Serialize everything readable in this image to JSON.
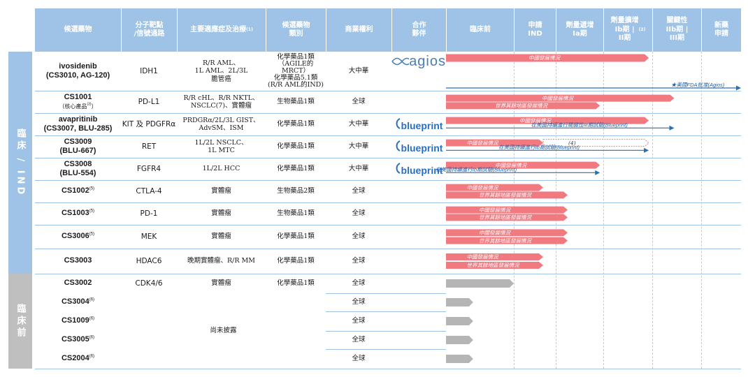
{
  "columns": [
    {
      "key": "candidate",
      "label": "候選藥物"
    },
    {
      "key": "target",
      "label": "分子靶點\n/信號通路"
    },
    {
      "key": "indication",
      "label": "主要適應症及治療",
      "sup": "(1)"
    },
    {
      "key": "category",
      "label": "候選藥物\n類別"
    },
    {
      "key": "rights",
      "label": "商業權利"
    },
    {
      "key": "partner",
      "label": "合作\n夥伴"
    },
    {
      "key": "preclinical",
      "label": "臨床前"
    },
    {
      "key": "ind",
      "label": "申請\nIND"
    },
    {
      "key": "dose_esc",
      "label": "劑量遞增\nIa期"
    },
    {
      "key": "dose_exp",
      "label": "劑量擴增\nIb期 |\nII期",
      "sup": "(2)"
    },
    {
      "key": "pivotal",
      "label": "關鍵性\nIIb期 |\nIII期"
    },
    {
      "key": "nda",
      "label": "新藥\n申請"
    }
  ],
  "groups": [
    {
      "label": "臨床 / IND",
      "color": "#9ec3e6"
    },
    {
      "label": "臨床前",
      "color": "#bfbfbf"
    }
  ],
  "rows": [
    {
      "name": "ivosidenib",
      "sub": "(CS3010, AG-120)",
      "sub_bold": true,
      "target": "IDH1",
      "indication": "R/R AML、\n1L AML、2L/3L\n膽管癌",
      "category": "化學藥品1類\n（AGILE的MRCT）\n化學藥品5.1類\n(R/R AML的IND)",
      "rights": "大中華",
      "partner": "agios"
    },
    {
      "name": "CS1001",
      "sub": "（核心產品",
      "sub_sup": "(3)",
      "sub_end": "）",
      "target": "PD-L1",
      "indication": "R/R cHL、R/R NKTL、\nNSCLC(7)、實體瘤",
      "category": "生物藥品1類",
      "rights": "全球",
      "partner": ""
    },
    {
      "name": "avapritinib",
      "sub": "(CS3007, BLU-285)",
      "sub_bold": true,
      "target": "KIT 及 PDGFRα",
      "indication": "PRDGRα/2L/3L GIST、\nAdvSM、ISM",
      "category": "化學藥品1類",
      "rights": "大中華",
      "partner": "blueprint"
    },
    {
      "name": "CS3009",
      "sub": "(BLU-667)",
      "sub_bold": true,
      "target": "RET",
      "indication": "1L/2L NSCLC、\n1L MTC",
      "category": "化學藥品1類",
      "rights": "大中華",
      "partner": "blueprint"
    },
    {
      "name": "CS3008",
      "sub": "(BLU-554)",
      "sub_bold": true,
      "target": "FGFR4",
      "indication": "1L/2L HCC",
      "category": "化學藥品1類",
      "rights": "大中華",
      "partner": "blueprint"
    },
    {
      "name": "CS1002",
      "name_sup": "(5)",
      "target": "CTLA-4",
      "indication": "實體瘤",
      "category": "生物藥品2類",
      "rights": "全球",
      "partner": ""
    },
    {
      "name": "CS1003",
      "name_sup": "(5)",
      "target": "PD-1",
      "indication": "實體瘤",
      "category": "生物藥品1類",
      "rights": "全球",
      "partner": ""
    },
    {
      "name": "CS3006",
      "name_sup": "(5)",
      "target": "MEK",
      "indication": "實體瘤",
      "category": "化學藥品1類",
      "rights": "全球",
      "partner": ""
    },
    {
      "name": "CS3003",
      "target": "HDAC6",
      "indication": "晚期實體瘤、R/R MM",
      "category": "化學藥品1類",
      "rights": "全球",
      "partner": ""
    },
    {
      "name": "CS3002",
      "target": "CDK4/6",
      "indication": "實體瘤",
      "category": "化學藥品1類",
      "rights": "全球",
      "partner": ""
    },
    {
      "name": "CS3004",
      "name_sup": "(6)",
      "rights": "全球"
    },
    {
      "name": "CS1009",
      "name_sup": "(6)",
      "rights": "全球"
    },
    {
      "name": "CS3005",
      "name_sup": "(6)",
      "rights": "全球"
    },
    {
      "name": "CS2004",
      "name_sup": "(6)",
      "rights": "全球"
    }
  ],
  "undisclosed_label": "尚未披露",
  "chart_data": {
    "type": "gantt",
    "stages": [
      "臨床前",
      "申請IND",
      "劑量遞增Ia期",
      "劑量擴增Ib期|II期",
      "關鍵性IIb期|III期",
      "新藥申請"
    ],
    "bars": [
      {
        "row": 0,
        "label": "中國發展情況",
        "start": 0,
        "end": 3.93,
        "style": "solid"
      },
      {
        "row": 0,
        "label": "★美國FDA批准(Agios)",
        "start": 0,
        "end": 6,
        "style": "arrow"
      },
      {
        "row": 1,
        "label": "中國發展情況",
        "start": 0,
        "end": 4.45,
        "style": "solid"
      },
      {
        "row": 1,
        "label": "世界其餘地區發展情況",
        "start": 0,
        "end": 2.93,
        "style": "solid"
      },
      {
        "row": 2,
        "label": "中國發展情況",
        "start": 0,
        "end": 3.93,
        "style": "solid"
      },
      {
        "row": 2,
        "label": "在美國持續進行關鍵性III期試驗(Blueprint)",
        "start": 0,
        "end": 4.45,
        "style": "arrow"
      },
      {
        "row": 3,
        "label": "中國發展情況",
        "start": 0,
        "end": 1.7,
        "style": "solid"
      },
      {
        "row": 3,
        "label": "(4)",
        "start": 1.7,
        "end": 3.93,
        "style": "outline"
      },
      {
        "row": 3,
        "label": "在美國持續進行Ib期試驗(Blueprint)",
        "start": 0,
        "end": 3.93,
        "style": "arrow"
      },
      {
        "row": 4,
        "label": "中國發展情況",
        "start": 0,
        "end": 2.93,
        "style": "solid"
      },
      {
        "row": 4,
        "label": "在美國持續進行Ib期試驗(Blueprint)",
        "start": 0,
        "end": 2.93,
        "style": "arrow"
      },
      {
        "row": 5,
        "label": "中國發展情況",
        "start": 0,
        "end": 1.7,
        "style": "solid"
      },
      {
        "row": 5,
        "label": "世界其餘地區發展情況",
        "start": 0,
        "end": 2.25,
        "style": "solid"
      },
      {
        "row": 6,
        "label": "中國發展情況",
        "start": 0,
        "end": 2.25,
        "style": "solid"
      },
      {
        "row": 6,
        "label": "世界其餘地區發展情況",
        "start": 0,
        "end": 2.25,
        "style": "solid"
      },
      {
        "row": 7,
        "label": "中國發展情況",
        "start": 0,
        "end": 2.25,
        "style": "solid"
      },
      {
        "row": 7,
        "label": "世界其餘地區發展情況",
        "start": 0,
        "end": 2.25,
        "style": "solid"
      },
      {
        "row": 8,
        "label": "中國發展情況",
        "start": 0,
        "end": 1.7,
        "style": "solid"
      },
      {
        "row": 8,
        "label": "世界其餘地區發展情況",
        "start": 0,
        "end": 1.7,
        "style": "solid"
      },
      {
        "row": 9,
        "label": "",
        "start": 0,
        "end": 1,
        "style": "gray"
      },
      {
        "row": 10,
        "label": "",
        "start": 0,
        "end": 0.4,
        "style": "gray"
      },
      {
        "row": 11,
        "label": "",
        "start": 0,
        "end": 0.4,
        "style": "gray"
      },
      {
        "row": 12,
        "label": "",
        "start": 0,
        "end": 0.4,
        "style": "gray"
      },
      {
        "row": 13,
        "label": "",
        "start": 0,
        "end": 0.4,
        "style": "gray"
      }
    ],
    "colors": {
      "solid": "#f07a80",
      "gray": "#b5b5b5",
      "arrow": "#2a6eb5",
      "header": "#9ec3e6"
    }
  }
}
